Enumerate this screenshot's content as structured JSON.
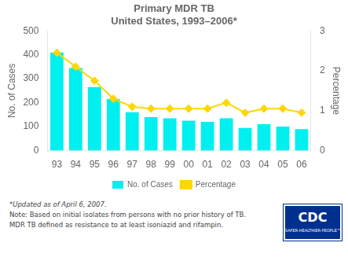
{
  "chart_data": {
    "type": "bar",
    "title": "Primary MDR TB",
    "subtitle": "United States, 1993–2006*",
    "ylabel": "No. of Cases",
    "y2label": "Percentage",
    "categories": [
      "93",
      "94",
      "95",
      "96",
      "97",
      "98",
      "99",
      "00",
      "01",
      "02",
      "03",
      "04",
      "05",
      "06"
    ],
    "series": [
      {
        "name": "No. of Cases",
        "type": "bar",
        "color": "#00EFEF",
        "values": [
          410,
          345,
          265,
          215,
          160,
          140,
          135,
          125,
          120,
          135,
          95,
          110,
          100,
          90
        ]
      },
      {
        "name": "Percentage",
        "type": "line",
        "color": "#FFD700",
        "marker": "diamond",
        "axis": "y2",
        "values": [
          2.45,
          2.1,
          1.75,
          1.3,
          1.1,
          1.05,
          1.05,
          1.05,
          1.05,
          1.2,
          0.95,
          1.05,
          1.05,
          0.95
        ]
      }
    ],
    "ylim": [
      0,
      500
    ],
    "yticks": [
      0,
      100,
      200,
      300,
      400,
      500
    ],
    "y2lim": [
      0,
      3
    ],
    "y2ticks": [
      0,
      1,
      2,
      3
    ],
    "grid": false,
    "legend": "bottom",
    "annotations": [
      "*Updated as of April 6, 2007.",
      "Note: Based on initial isolates from persons with no prior history of TB.",
      "MDR TB defined as resistance to at least isoniazid and rifampin.",
      "CDC",
      "SAFER·HEALTHIER·PEOPLE™"
    ]
  }
}
